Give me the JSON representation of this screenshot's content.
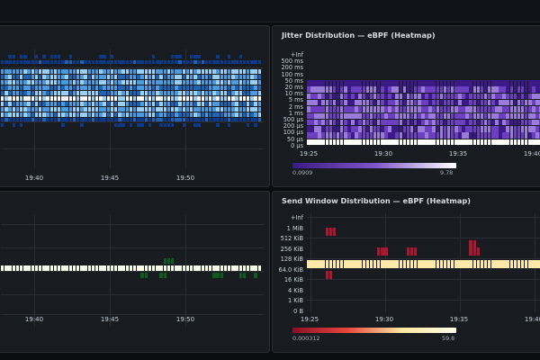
{
  "panels": {
    "top_left": {
      "title": "",
      "x_ticks": [
        "19:40",
        "19:45",
        "19:50"
      ]
    },
    "top_right": {
      "title": "Jitter Distribution — eBPF (Heatmap)",
      "y_buckets": [
        "+Inf",
        "500 ms",
        "200 ms",
        "100 ms",
        "50 ms",
        "20 ms",
        "10 ms",
        "5 ms",
        "2 ms",
        "1 ms",
        "500 µs",
        "200 µs",
        "100 µs",
        "50 µs",
        "0 µs"
      ],
      "x_ticks": [
        "19:25",
        "19:30",
        "19:35",
        "19:40"
      ],
      "legend": {
        "min": "0.0909",
        "max": "9.78",
        "colors": [
          "#3b1a87",
          "#7e54c8",
          "#ffffff"
        ]
      }
    },
    "bottom_left": {
      "title": "",
      "x_ticks": [
        "19:40",
        "19:45",
        "19:50"
      ]
    },
    "bottom_right": {
      "title": "Send Window Distribution — eBPF (Heatmap)",
      "y_buckets": [
        "+Inf",
        "1 MiB",
        "512 KiB",
        "256 KiB",
        "128 KiB",
        "64.0 KiB",
        "16 KiB",
        "4 KiB",
        "1 KiB",
        "0 B"
      ],
      "x_ticks": [
        "19:25",
        "19:30",
        "19:35",
        "19:40"
      ],
      "legend": {
        "min": "0.000312",
        "max": "59.8",
        "colors": [
          "#8a0f26",
          "#e8453c",
          "#ffe8a0",
          "#fffce8"
        ]
      }
    }
  },
  "colors": {
    "blue_heatmap": [
      "#0b3a8a",
      "#1f63b5",
      "#4a9be0",
      "#9bd0f5",
      "#ffffff"
    ],
    "purple_heatmap": [
      "#3b1a87",
      "#6b3fbf",
      "#9a7bd8",
      "#ffffff"
    ],
    "green_heatmap": [
      "#0f5a1e",
      "#f6fbe8"
    ],
    "red_heatmap": [
      "#b0162f",
      "#ffe9a8"
    ]
  }
}
